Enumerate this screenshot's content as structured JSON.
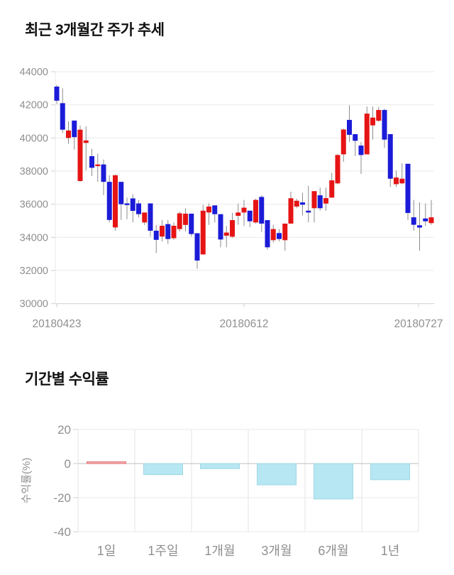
{
  "page": {
    "background": "#ffffff",
    "text_color": "#111111",
    "axis_label_color": "#8f8f8f",
    "grid_color": "#e9e9e9",
    "axis_line_color": "#cfcfcf"
  },
  "price_chart": {
    "title": "최근 3개월간 주가 추세"
  },
  "returns_chart": {
    "title": "기간별 수익률",
    "ylabel": "수익률(%)"
  },
  "chart_data": [
    {
      "type": "candlestick",
      "title": "최근 3개월간 주가 추세",
      "ylim": [
        30000,
        44000
      ],
      "y_ticks": [
        44000,
        42000,
        40000,
        38000,
        36000,
        34000,
        32000,
        30000
      ],
      "x_tick_labels": [
        "20180423",
        "20180612",
        "20180727"
      ],
      "grid": "horizontal",
      "up_color": "#e61414",
      "down_color": "#1b1bd8",
      "wick_color": "#8c8c8c",
      "ohlc": [
        [
          43100,
          43200,
          42050,
          42250
        ],
        [
          42100,
          43000,
          40300,
          40500
        ],
        [
          40000,
          41000,
          39650,
          40450
        ],
        [
          41050,
          41050,
          39300,
          40050
        ],
        [
          37400,
          40750,
          37350,
          40500
        ],
        [
          39700,
          40700,
          38050,
          39850
        ],
        [
          38900,
          39350,
          37700,
          38200
        ],
        [
          38300,
          39050,
          37350,
          38400
        ],
        [
          38400,
          38700,
          36550,
          37350
        ],
        [
          37350,
          37750,
          34900,
          35050
        ],
        [
          34600,
          37800,
          34400,
          37750
        ],
        [
          37350,
          37350,
          35050,
          36000
        ],
        [
          36050,
          36400,
          35100,
          35950
        ],
        [
          36350,
          36600,
          34900,
          35600
        ],
        [
          36050,
          36250,
          35200,
          35400
        ],
        [
          34900,
          35500,
          34750,
          35500
        ],
        [
          36050,
          36050,
          34050,
          34400
        ],
        [
          34400,
          34750,
          33050,
          33850
        ],
        [
          34050,
          35050,
          33750,
          34700
        ],
        [
          34800,
          35050,
          33600,
          33900
        ],
        [
          33950,
          34900,
          33850,
          34700
        ],
        [
          34500,
          35550,
          34350,
          35450
        ],
        [
          34750,
          35750,
          34350,
          35430
        ],
        [
          35430,
          35430,
          34050,
          34200
        ],
        [
          34250,
          34250,
          32100,
          32600
        ],
        [
          32970,
          35970,
          32950,
          35610
        ],
        [
          35500,
          36050,
          34750,
          35860
        ],
        [
          35930,
          35930,
          34900,
          35400
        ],
        [
          35400,
          35400,
          33400,
          33870
        ],
        [
          34100,
          34700,
          33400,
          34290
        ],
        [
          34040,
          35470,
          33970,
          35040
        ],
        [
          35300,
          36040,
          34760,
          35500
        ],
        [
          35500,
          36260,
          34690,
          35790
        ],
        [
          35610,
          35610,
          34610,
          34970
        ],
        [
          34900,
          36330,
          34830,
          36260
        ],
        [
          36440,
          36540,
          34330,
          34830
        ],
        [
          35040,
          35040,
          33260,
          33400
        ],
        [
          33830,
          34760,
          33690,
          34500
        ],
        [
          34260,
          34500,
          33760,
          33900
        ],
        [
          33830,
          34830,
          33190,
          34830
        ],
        [
          34830,
          36760,
          34830,
          36360
        ],
        [
          35860,
          36330,
          35760,
          36210
        ],
        [
          36110,
          36690,
          35330,
          35970
        ],
        [
          35610,
          37110,
          34900,
          35500
        ],
        [
          35760,
          36790,
          34900,
          36790
        ],
        [
          36540,
          37000,
          35610,
          35760
        ],
        [
          36040,
          37000,
          35610,
          36370
        ],
        [
          36400,
          37900,
          36400,
          37440
        ],
        [
          37260,
          39040,
          37210,
          38970
        ],
        [
          39010,
          40560,
          38560,
          40510
        ],
        [
          41090,
          41970,
          39760,
          40190
        ],
        [
          40230,
          40230,
          38900,
          39830
        ],
        [
          39540,
          39760,
          37830,
          38970
        ],
        [
          39010,
          41900,
          39010,
          41470
        ],
        [
          40760,
          41900,
          39900,
          41230
        ],
        [
          41040,
          41870,
          40970,
          41690
        ],
        [
          41690,
          41760,
          39400,
          39900
        ],
        [
          40230,
          40230,
          37040,
          37540
        ],
        [
          37210,
          38040,
          37040,
          37610
        ],
        [
          37260,
          38470,
          37210,
          37540
        ],
        [
          38440,
          38440,
          35040,
          35470
        ],
        [
          35210,
          36260,
          34400,
          34760
        ],
        [
          34730,
          36110,
          33190,
          34590
        ],
        [
          35140,
          36040,
          34690,
          34970
        ],
        [
          34860,
          36260,
          34760,
          35210
        ]
      ]
    },
    {
      "type": "bar",
      "title": "기간별 수익률",
      "xlabel": "",
      "ylabel": "수익률(%)",
      "categories": [
        "1일",
        "1주일",
        "1개월",
        "3개월",
        "6개월",
        "1년"
      ],
      "values": [
        1.0,
        -6.5,
        -3.0,
        -12.5,
        -20.8,
        -9.5
      ],
      "ylim": [
        -40,
        20
      ],
      "y_ticks": [
        20,
        0,
        -20,
        -40
      ],
      "grid": "both",
      "legend": "none",
      "positive_fill": "#f5b6b6",
      "positive_border": "#e06a6a",
      "negative_fill": "#b6e7f2",
      "negative_border": "#9fd7e4"
    }
  ]
}
